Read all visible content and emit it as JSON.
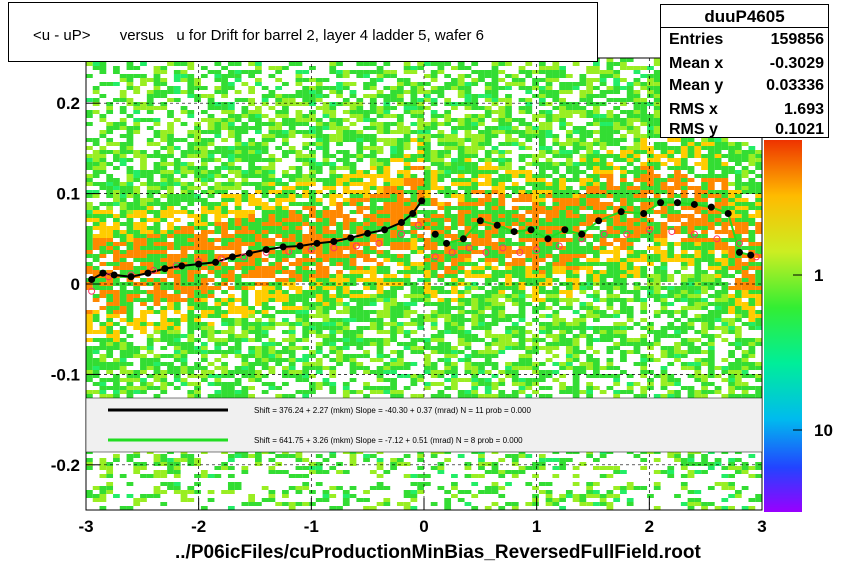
{
  "title": "<u - uP>       versus   u for Drift for barrel 2, layer 4 ladder 5, wafer 6",
  "footer": "../P06icFiles/cuProductionMinBias_ReversedFullField.root",
  "stats": {
    "name": "duuP4605",
    "rows": [
      {
        "label": "Entries",
        "value": "159856"
      },
      {
        "label": "Mean x",
        "value": "-0.3029"
      },
      {
        "label": "Mean y",
        "value": "0.03336"
      },
      {
        "label": "RMS x",
        "value": "1.693"
      },
      {
        "label": "RMS y",
        "value": "0.1021"
      }
    ]
  },
  "legend": {
    "line1": "Shift =   376.24 + 2.27 (mkm) Slope =   -40.30 + 0.37 (mrad)  N = 11 prob = 0.000",
    "line2": "Shift =   641.75 + 3.26 (mkm) Slope =    -7.12 + 0.51 (mrad)  N = 8 prob = 0.000",
    "color1": "#000000",
    "color2": "#22dd22"
  },
  "colors": {
    "palette_low": "#22dd22",
    "palette_mid": "#ffcc00",
    "palette_high": "#ee3300",
    "profile_black": "#000000",
    "profile_open": "#ff3366"
  },
  "chart_data": {
    "type": "heatmap",
    "xlim": [
      -3,
      3
    ],
    "ylim": [
      -0.25,
      0.25
    ],
    "x_ticks": [
      "-3",
      "-2",
      "-1",
      "0",
      "1",
      "2",
      "3"
    ],
    "y_ticks": [
      "-0.2",
      "-0.1",
      "0",
      "0.1",
      "0.2"
    ],
    "z_ticks": [
      "1",
      "10"
    ],
    "z_scale": "log",
    "grid": true,
    "series": [
      {
        "marker": "filled-circle",
        "x": [
          -2.95,
          -2.85,
          -2.75,
          -2.6,
          -2.45,
          -2.3,
          -2.15,
          -2.0,
          -1.85,
          -1.7,
          -1.55,
          -1.4,
          -1.25,
          -1.1,
          -0.95,
          -0.8,
          -0.65,
          -0.5,
          -0.35,
          -0.2,
          -0.1,
          -0.02,
          0.1,
          0.2,
          0.35,
          0.5,
          0.65,
          0.8,
          0.95,
          1.1,
          1.25,
          1.4,
          1.55,
          1.75,
          1.95,
          2.1,
          2.25,
          2.4,
          2.55,
          2.7,
          2.8,
          2.9
        ],
        "y": [
          0.005,
          0.012,
          0.01,
          0.008,
          0.012,
          0.017,
          0.02,
          0.022,
          0.024,
          0.03,
          0.034,
          0.038,
          0.041,
          0.042,
          0.045,
          0.047,
          0.051,
          0.056,
          0.06,
          0.068,
          0.078,
          0.092,
          0.055,
          0.045,
          0.05,
          0.07,
          0.065,
          0.058,
          0.06,
          0.05,
          0.06,
          0.055,
          0.07,
          0.08,
          0.078,
          0.09,
          0.09,
          0.088,
          0.085,
          0.078,
          0.035,
          0.032
        ]
      },
      {
        "marker": "open-circle",
        "x": [
          -2.95,
          -2.8,
          -2.6,
          -2.4,
          -2.2,
          -2.0,
          -1.8,
          -1.6,
          -1.4,
          -1.2,
          -1.0,
          -0.8,
          -0.6,
          -0.4,
          -0.2,
          -0.05,
          0.1,
          0.25,
          0.4,
          0.55,
          0.7,
          0.85,
          1.0,
          1.2,
          1.4,
          1.6,
          1.8,
          2.0,
          2.2,
          2.4,
          2.6,
          2.8,
          2.95
        ],
        "y": [
          -0.008,
          0.008,
          0.01,
          0.015,
          0.02,
          0.025,
          0.028,
          0.03,
          0.035,
          0.036,
          0.038,
          0.04,
          0.042,
          0.045,
          0.055,
          0.065,
          0.03,
          0.035,
          0.04,
          0.035,
          0.04,
          0.035,
          0.038,
          0.042,
          0.05,
          0.055,
          0.055,
          0.06,
          0.058,
          0.055,
          0.05,
          0.045,
          0.03
        ]
      }
    ]
  }
}
